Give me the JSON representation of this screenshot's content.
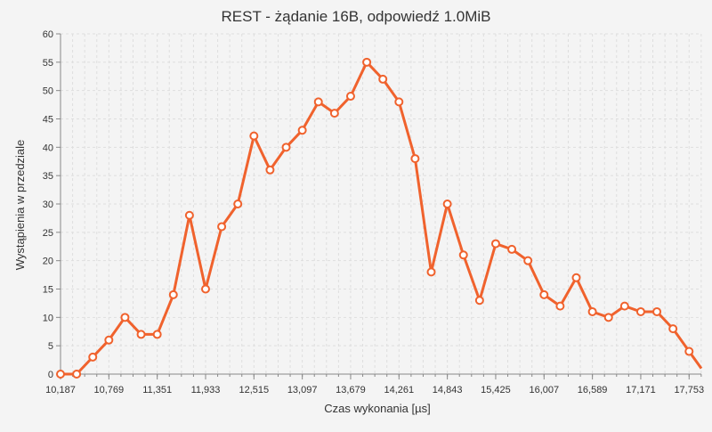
{
  "chart_data": {
    "type": "line",
    "title": "REST - żądanie 16B, odpowiedź 1.0MiB",
    "xlabel": "Czas wykonania [µs]",
    "ylabel": "Wystąpienia w przedziale",
    "xlim": [
      10187,
      17900
    ],
    "ylim": [
      0,
      60
    ],
    "x_ticks": [
      {
        "value": 10187,
        "label": "10,187"
      },
      {
        "value": 10769,
        "label": "10,769"
      },
      {
        "value": 11351,
        "label": "11,351"
      },
      {
        "value": 11933,
        "label": "11,933"
      },
      {
        "value": 12515,
        "label": "12,515"
      },
      {
        "value": 13097,
        "label": "13,097"
      },
      {
        "value": 13679,
        "label": "13,679"
      },
      {
        "value": 14261,
        "label": "14,261"
      },
      {
        "value": 14843,
        "label": "14,843"
      },
      {
        "value": 15425,
        "label": "15,425"
      },
      {
        "value": 16007,
        "label": "16,007"
      },
      {
        "value": 16589,
        "label": "16,589"
      },
      {
        "value": 17171,
        "label": "17,171"
      },
      {
        "value": 17753,
        "label": "17,753"
      }
    ],
    "y_ticks": [
      0,
      5,
      10,
      15,
      20,
      25,
      30,
      35,
      40,
      45,
      50,
      55,
      60
    ],
    "grid": true,
    "legend": "none",
    "series": [
      {
        "color": "#f0622d",
        "points": [
          [
            10187,
            0
          ],
          [
            10381,
            0
          ],
          [
            10575,
            3
          ],
          [
            10769,
            6
          ],
          [
            10963,
            10
          ],
          [
            11157,
            7
          ],
          [
            11351,
            7
          ],
          [
            11545,
            14
          ],
          [
            11739,
            28
          ],
          [
            11933,
            15
          ],
          [
            12127,
            26
          ],
          [
            12321,
            30
          ],
          [
            12515,
            42
          ],
          [
            12709,
            36
          ],
          [
            12903,
            40
          ],
          [
            13097,
            43
          ],
          [
            13291,
            48
          ],
          [
            13485,
            46
          ],
          [
            13679,
            49
          ],
          [
            13873,
            55
          ],
          [
            14067,
            52
          ],
          [
            14261,
            48
          ],
          [
            14455,
            38
          ],
          [
            14649,
            18
          ],
          [
            14843,
            30
          ],
          [
            15037,
            21
          ],
          [
            15231,
            13
          ],
          [
            15425,
            23
          ],
          [
            15619,
            22
          ],
          [
            15813,
            20
          ],
          [
            16007,
            14
          ],
          [
            16201,
            12
          ],
          [
            16395,
            17
          ],
          [
            16589,
            11
          ],
          [
            16783,
            10
          ],
          [
            16977,
            12
          ],
          [
            17171,
            11
          ],
          [
            17365,
            11
          ],
          [
            17559,
            8
          ],
          [
            17753,
            4
          ],
          [
            17900,
            1
          ]
        ]
      }
    ]
  }
}
